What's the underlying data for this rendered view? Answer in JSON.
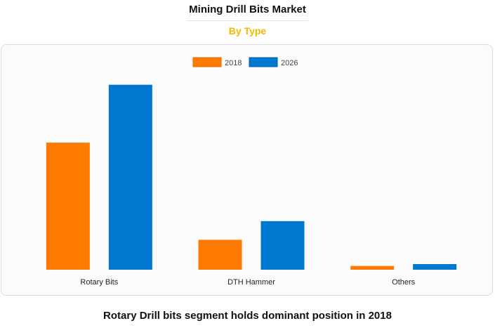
{
  "header": {
    "title": "Mining Drill Bits Market",
    "subtitle": "By Type"
  },
  "footer": {
    "caption": "Rotary Drill bits segment holds dominant position in 2018"
  },
  "colors": {
    "series_2018": "#ff7a00",
    "series_2026": "#0078d0"
  },
  "chart_data": {
    "type": "bar",
    "title": "",
    "xlabel": "",
    "ylabel": "",
    "categories": [
      "Rotary Bits",
      "DTH Hammer",
      "Others"
    ],
    "series": [
      {
        "name": "2018",
        "values": [
          68,
          16,
          2
        ]
      },
      {
        "name": "2026",
        "values": [
          99,
          26,
          3
        ]
      }
    ],
    "ylim": [
      0,
      100
    ],
    "grid": false,
    "legend": "top-center"
  }
}
